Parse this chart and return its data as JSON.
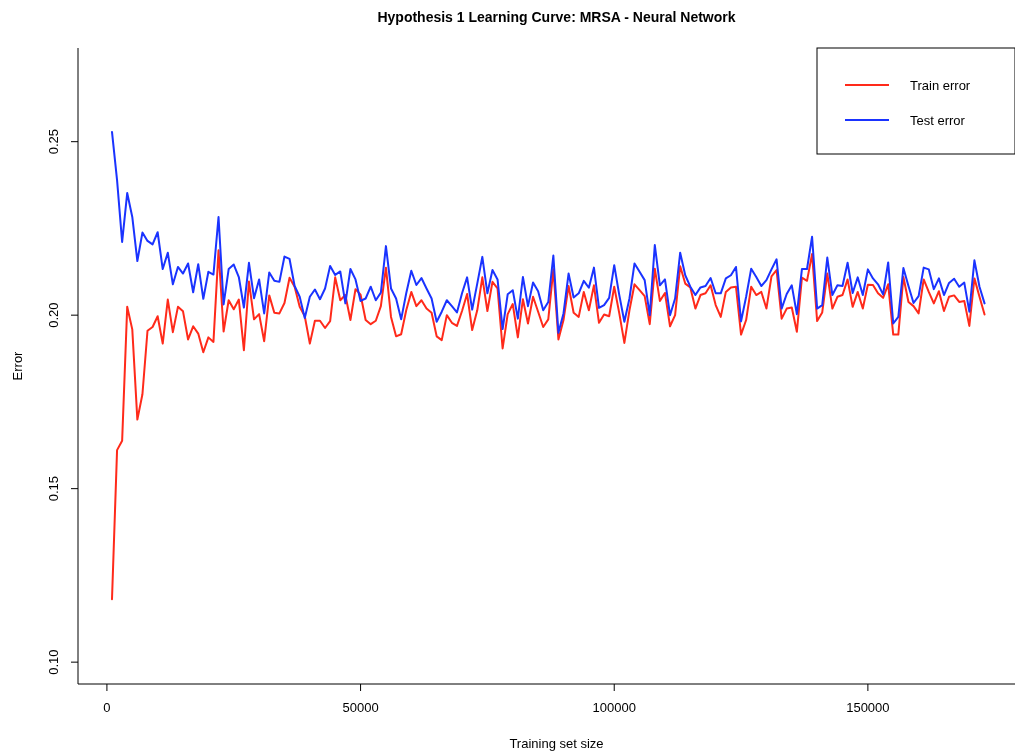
{
  "chart_data": {
    "type": "line",
    "title": "Hypothesis 1 Learning Curve: MRSA - Neural Network",
    "xlabel": "Training set size",
    "ylabel": "Error",
    "x": [
      1000,
      2000,
      3000,
      4000,
      5000,
      6000,
      7000,
      8000,
      9000,
      10000,
      11000,
      12000,
      13000,
      14000,
      15000,
      16000,
      17000,
      18000,
      19000,
      20000,
      21000,
      22000,
      23000,
      24000,
      25000,
      26000,
      27000,
      28000,
      29000,
      30000,
      31000,
      32000,
      33000,
      34000,
      35000,
      36000,
      37000,
      38000,
      39000,
      40000,
      41000,
      42000,
      43000,
      44000,
      45000,
      46000,
      47000,
      48000,
      49000,
      50000,
      51000,
      52000,
      53000,
      54000,
      55000,
      56000,
      57000,
      58000,
      59000,
      60000,
      61000,
      62000,
      63000,
      64000,
      65000,
      66000,
      67000,
      68000,
      69000,
      70000,
      71000,
      72000,
      73000,
      74000,
      75000,
      76000,
      77000,
      78000,
      79000,
      80000,
      81000,
      82000,
      83000,
      84000,
      85000,
      86000,
      87000,
      88000,
      89000,
      90000,
      91000,
      92000,
      93000,
      94000,
      95000,
      96000,
      97000,
      98000,
      99000,
      100000,
      101000,
      102000,
      103000,
      104000,
      105000,
      106000,
      107000,
      108000,
      109000,
      110000,
      111000,
      112000,
      113000,
      114000,
      115000,
      116000,
      117000,
      118000,
      119000,
      120000,
      121000,
      122000,
      123000,
      124000,
      125000,
      126000,
      127000,
      128000,
      129000,
      130000,
      131000,
      132000,
      133000,
      134000,
      135000,
      136000,
      137000,
      138000,
      139000,
      140000,
      141000,
      142000,
      143000,
      144000,
      145000,
      146000,
      147000,
      148000,
      149000,
      150000,
      151000,
      152000,
      153000,
      154000,
      155000,
      156000,
      157000,
      158000,
      159000,
      160000,
      161000,
      162000,
      163000,
      164000,
      165000,
      166000,
      167000,
      168000,
      169000,
      170000,
      171000,
      172000,
      173000
    ],
    "series": [
      {
        "name": "Train error",
        "color": "#ff2a1a",
        "values": [
          0.1181,
          0.1611,
          0.1638,
          0.2024,
          0.1959,
          0.1699,
          0.1772,
          0.1955,
          0.1966,
          0.1997,
          0.1918,
          0.2045,
          0.1951,
          0.2024,
          0.2011,
          0.193,
          0.1968,
          0.1947,
          0.1893,
          0.1936,
          0.1923,
          0.2187,
          0.1953,
          0.2043,
          0.2017,
          0.2045,
          0.1899,
          0.2097,
          0.1988,
          0.2003,
          0.1925,
          0.2057,
          0.2007,
          0.2005,
          0.2035,
          0.2108,
          0.2082,
          0.2024,
          0.1997,
          0.1918,
          0.1984,
          0.1984,
          0.1963,
          0.1983,
          0.2109,
          0.2043,
          0.2058,
          0.1986,
          0.2075,
          0.2059,
          0.1986,
          0.1974,
          0.1984,
          0.2026,
          0.2137,
          0.1995,
          0.1939,
          0.1945,
          0.2014,
          0.2067,
          0.2026,
          0.2043,
          0.2019,
          0.2007,
          0.1939,
          0.1928,
          0.2,
          0.1978,
          0.1969,
          0.2012,
          0.2061,
          0.1957,
          0.2014,
          0.2109,
          0.2012,
          0.2096,
          0.2077,
          0.1904,
          0.2003,
          0.2032,
          0.1936,
          0.2046,
          0.1976,
          0.2053,
          0.201,
          0.1966,
          0.1988,
          0.2132,
          0.193,
          0.1986,
          0.2084,
          0.2007,
          0.1995,
          0.2067,
          0.2014,
          0.2086,
          0.1978,
          0.2002,
          0.1997,
          0.2082,
          0.2005,
          0.192,
          0.2014,
          0.2089,
          0.2072,
          0.2055,
          0.1974,
          0.2134,
          0.2041,
          0.2064,
          0.1968,
          0.2,
          0.2141,
          0.2091,
          0.208,
          0.2019,
          0.2058,
          0.2063,
          0.2086,
          0.2029,
          0.1995,
          0.2067,
          0.208,
          0.2082,
          0.1944,
          0.1986,
          0.2082,
          0.2058,
          0.2067,
          0.2019,
          0.2112,
          0.213,
          0.199,
          0.2019,
          0.2022,
          0.1952,
          0.2108,
          0.2099,
          0.2176,
          0.1983,
          0.2008,
          0.212,
          0.2019,
          0.2053,
          0.2058,
          0.2103,
          0.2024,
          0.2067,
          0.2019,
          0.2088,
          0.2087,
          0.2063,
          0.205,
          0.2089,
          0.1944,
          0.1944,
          0.211,
          0.2038,
          0.2026,
          0.2005,
          0.2103,
          0.2067,
          0.2034,
          0.2069,
          0.2012,
          0.2053,
          0.2057,
          0.2038,
          0.2041,
          0.1969,
          0.2106,
          0.2053,
          0.2002
        ]
      },
      {
        "name": "Test error",
        "color": "#1a33ff",
        "values": [
          0.2528,
          0.2389,
          0.2211,
          0.2352,
          0.2283,
          0.2156,
          0.2238,
          0.2214,
          0.2204,
          0.2239,
          0.2133,
          0.218,
          0.2089,
          0.2139,
          0.212,
          0.2149,
          0.2066,
          0.2147,
          0.2047,
          0.2125,
          0.2117,
          0.2283,
          0.2031,
          0.2133,
          0.2146,
          0.211,
          0.2022,
          0.2151,
          0.2049,
          0.2103,
          0.2005,
          0.2123,
          0.2099,
          0.2096,
          0.2169,
          0.2162,
          0.2084,
          0.2053,
          0.1992,
          0.2053,
          0.2074,
          0.2046,
          0.2077,
          0.2142,
          0.2116,
          0.2126,
          0.2034,
          0.2133,
          0.2103,
          0.2041,
          0.2048,
          0.2082,
          0.2043,
          0.2065,
          0.2199,
          0.2077,
          0.2048,
          0.1988,
          0.2063,
          0.2128,
          0.2087,
          0.2107,
          0.2077,
          0.2048,
          0.1981,
          0.201,
          0.2043,
          0.2026,
          0.2008,
          0.2063,
          0.2109,
          0.2016,
          0.2091,
          0.2168,
          0.2063,
          0.213,
          0.2103,
          0.196,
          0.206,
          0.2072,
          0.199,
          0.211,
          0.2026,
          0.2094,
          0.2069,
          0.2014,
          0.2038,
          0.2172,
          0.1949,
          0.2005,
          0.212,
          0.2051,
          0.2063,
          0.2099,
          0.2079,
          0.2137,
          0.2021,
          0.2029,
          0.205,
          0.2144,
          0.2058,
          0.1981,
          0.2048,
          0.2149,
          0.2125,
          0.2101,
          0.2,
          0.2202,
          0.2086,
          0.2103,
          0.2,
          0.2048,
          0.218,
          0.2115,
          0.2082,
          0.2058,
          0.208,
          0.2084,
          0.2107,
          0.2063,
          0.2063,
          0.2106,
          0.2115,
          0.2139,
          0.1982,
          0.2053,
          0.2134,
          0.211,
          0.2084,
          0.2101,
          0.2132,
          0.2161,
          0.2019,
          0.2061,
          0.2086,
          0.2003,
          0.2133,
          0.2133,
          0.2226,
          0.2019,
          0.2029,
          0.2166,
          0.2058,
          0.2086,
          0.2084,
          0.2151,
          0.2064,
          0.2109,
          0.2058,
          0.2132,
          0.2106,
          0.2089,
          0.206,
          0.2152,
          0.1976,
          0.1995,
          0.2136,
          0.2084,
          0.2035,
          0.2055,
          0.2137,
          0.2132,
          0.2075,
          0.2106,
          0.2058,
          0.2093,
          0.2105,
          0.2082,
          0.2094,
          0.201,
          0.2158,
          0.2082,
          0.2034
        ]
      }
    ],
    "xlim": [
      -5700,
      179000
    ],
    "ylim": [
      0.0937,
      0.277
    ],
    "xticks": [
      0,
      50000,
      100000,
      150000
    ],
    "yticks": [
      {
        "value": 0.1,
        "label": "0.10"
      },
      {
        "value": 0.15,
        "label": "0.15"
      },
      {
        "value": 0.2,
        "label": "0.20"
      },
      {
        "value": 0.25,
        "label": "0.25"
      }
    ],
    "grid": false,
    "legend": "top right",
    "marker": "none",
    "line_style": "solid"
  }
}
